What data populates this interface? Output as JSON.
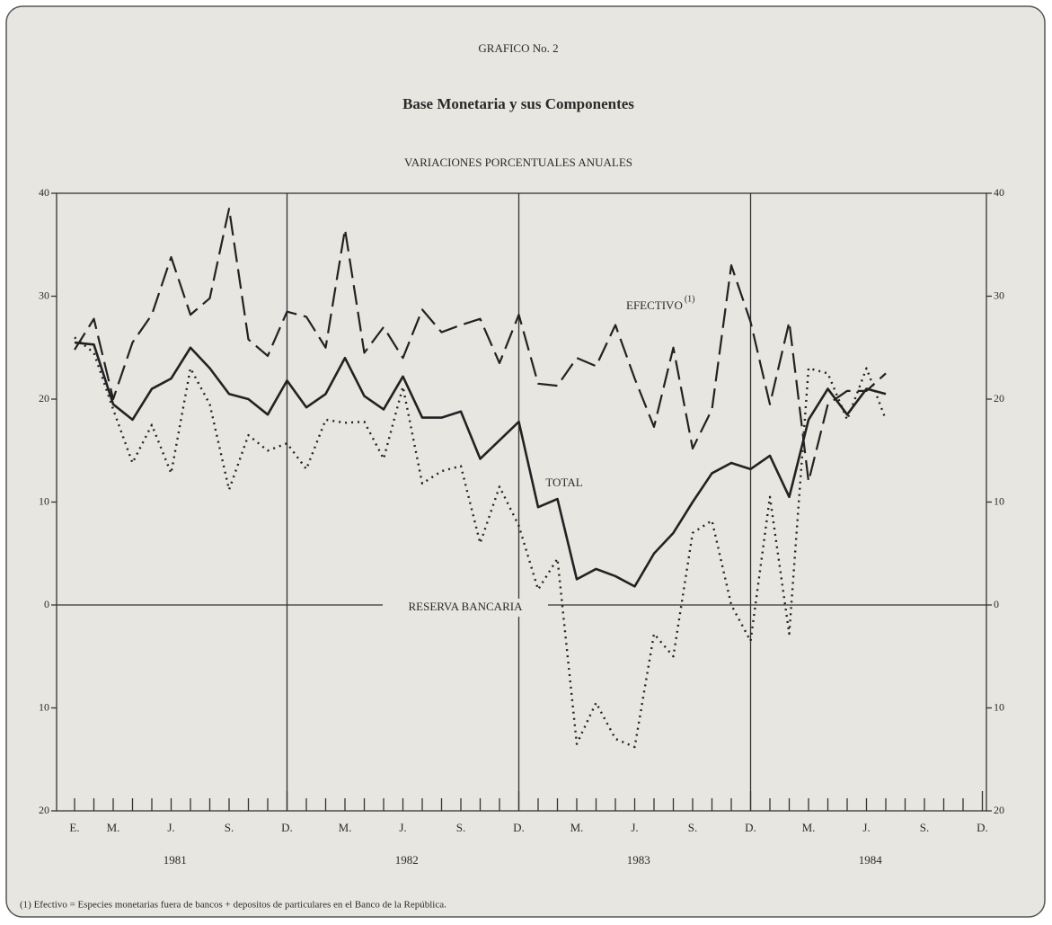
{
  "chart_data": {
    "type": "line",
    "header": "GRAFICO No. 2",
    "title": "Base Monetaria y sus Componentes",
    "subtitle": "VARIACIONES PORCENTUALES ANUALES",
    "categories": [
      "E.",
      null,
      "M.",
      null,
      null,
      "J.",
      null,
      null,
      "S.",
      null,
      null,
      "D.",
      null,
      null,
      "M.",
      null,
      null,
      "J.",
      null,
      null,
      "S.",
      null,
      null,
      "D.",
      null,
      null,
      "M.",
      null,
      null,
      "J.",
      null,
      null,
      "S.",
      null,
      null,
      "D.",
      null,
      null,
      "M.",
      null,
      null,
      "J.",
      null,
      null,
      "S.",
      null,
      null,
      "D."
    ],
    "years": [
      "1981",
      "1982",
      "1983",
      "1984"
    ],
    "series": [
      {
        "name": "TOTAL",
        "color": "#222222",
        "style": "solid",
        "values": [
          25.5,
          25.3,
          19.5,
          18,
          21,
          22,
          25,
          23,
          20.5,
          20,
          18.5,
          21.8,
          19.2,
          20.5,
          24,
          20.3,
          19,
          22.2,
          18.2,
          18.2,
          18.8,
          14.2,
          16,
          17.8,
          9.5,
          10.3,
          2.5,
          3.5,
          2.8,
          1.8,
          5,
          7,
          10,
          12.8,
          13.8,
          13.2,
          14.5,
          10.5,
          18,
          21,
          18.5,
          21,
          20.5,
          null,
          null,
          null,
          null,
          null
        ]
      },
      {
        "name": "EFECTIVO",
        "name_note": "(1)",
        "color": "#222222",
        "style": "dashed",
        "values": [
          24.8,
          27.8,
          20,
          25.5,
          28.2,
          33.8,
          28.2,
          29.8,
          38.5,
          25.8,
          24.2,
          28.5,
          28,
          25,
          36.5,
          24.5,
          27,
          24,
          28.7,
          26.5,
          27.2,
          27.8,
          23.5,
          28.2,
          21.5,
          21.3,
          24,
          23.2,
          27.2,
          22,
          17.3,
          25,
          15.2,
          19,
          33,
          27.5,
          19.5,
          27.5,
          12,
          19.5,
          20.8,
          20.8,
          22.5,
          null,
          null,
          null,
          null,
          null
        ]
      },
      {
        "name": "RESERVA BANCARIA",
        "color": "#222222",
        "style": "dotted",
        "values": [
          26,
          24.5,
          19,
          13.8,
          17.5,
          12.8,
          23,
          19.5,
          11.2,
          16.5,
          15,
          15.7,
          13.2,
          18,
          17.7,
          17.8,
          14.2,
          21.2,
          11.8,
          13,
          13.5,
          6,
          11.5,
          7.7,
          1.5,
          4.5,
          -13.5,
          -9.5,
          -13,
          -13.8,
          -2.8,
          -5,
          7,
          8.2,
          0,
          -3.5,
          10.5,
          -2.8,
          23,
          22.5,
          18,
          23,
          18,
          null,
          null,
          null,
          null,
          null
        ]
      }
    ],
    "ylim": [
      -20,
      40
    ],
    "yticks": [
      40,
      30,
      20,
      10,
      0,
      {
        "value": -10,
        "label": "10"
      },
      {
        "value": -20,
        "label": "20"
      }
    ],
    "footnote": "(1) Efectivo = Especies monetarias fuera de bancos + depositos de particulares en el Banco de la República."
  }
}
